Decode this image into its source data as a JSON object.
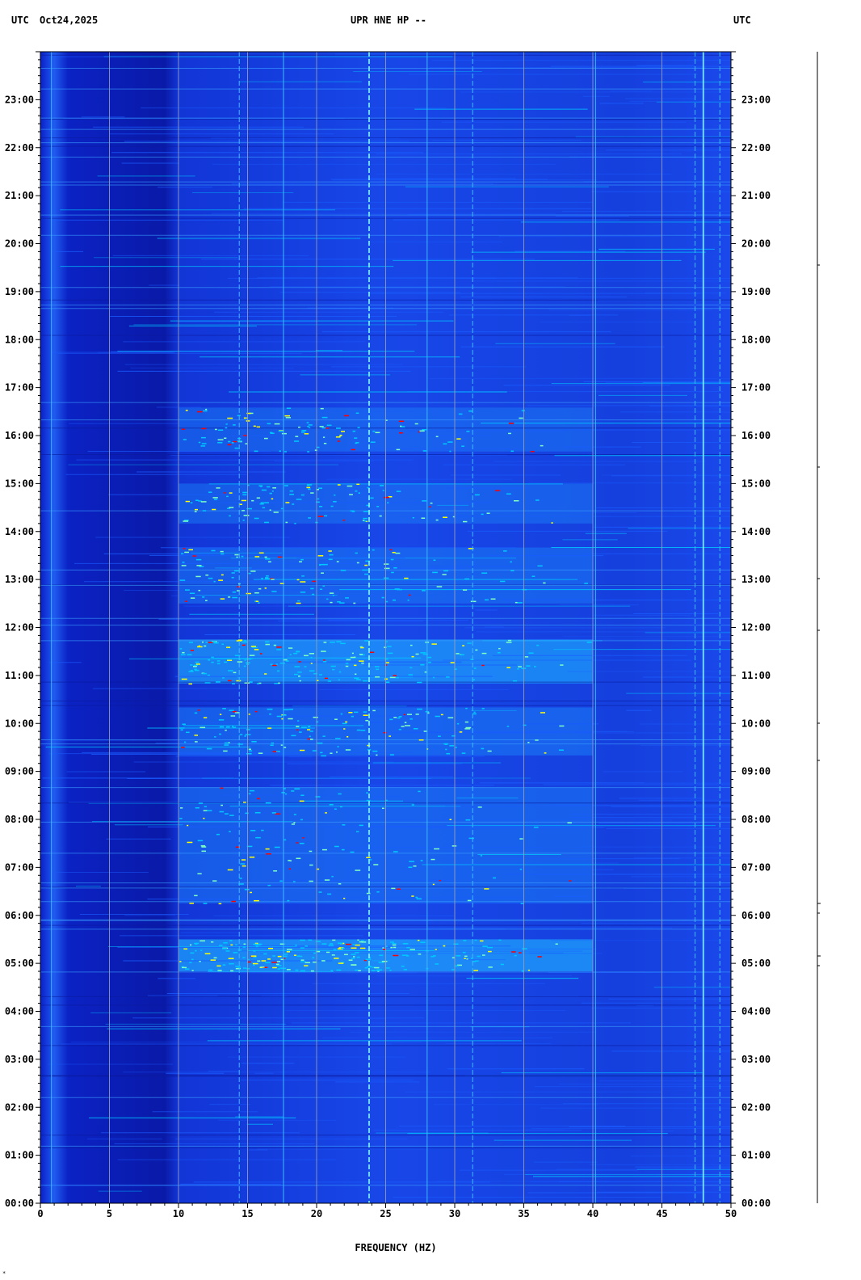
{
  "header": {
    "left_tz": "UTC",
    "date": "Oct24,2025",
    "station": "UPR HNE HP --",
    "right_tz": "UTC"
  },
  "chart_data": {
    "type": "heatmap",
    "title": "UPR HNE HP --",
    "xlabel": "FREQUENCY (HZ)",
    "ylabel": "UTC",
    "xlim": [
      0,
      50
    ],
    "ylim_hours": [
      0,
      24
    ],
    "x_ticks": [
      "0",
      "5",
      "10",
      "15",
      "20",
      "25",
      "30",
      "35",
      "40",
      "45",
      "50"
    ],
    "y_ticks": [
      "00:00",
      "01:00",
      "02:00",
      "03:00",
      "04:00",
      "05:00",
      "06:00",
      "07:00",
      "08:00",
      "09:00",
      "10:00",
      "11:00",
      "12:00",
      "13:00",
      "14:00",
      "15:00",
      "16:00",
      "17:00",
      "18:00",
      "19:00",
      "20:00",
      "21:00",
      "22:00",
      "23:00"
    ],
    "grid_x": true,
    "colormap": [
      "#000080",
      "#0000ff",
      "#1a5cff",
      "#00c8ff",
      "#7fffbf",
      "#ffff00",
      "#ff0000"
    ],
    "persistent_lines_hz": [
      0.8,
      14.4,
      17.6,
      23.8,
      28.0,
      31.3,
      40.2,
      47.4,
      48.0,
      49.2
    ],
    "energetic_bands_utc": [
      {
        "start": "04:50",
        "end": "05:30",
        "level": 0.85
      },
      {
        "start": "06:15",
        "end": "08:40",
        "level": 0.55
      },
      {
        "start": "09:20",
        "end": "10:20",
        "level": 0.6
      },
      {
        "start": "10:50",
        "end": "11:45",
        "level": 0.75
      },
      {
        "start": "12:30",
        "end": "13:40",
        "level": 0.55
      },
      {
        "start": "14:10",
        "end": "15:00",
        "level": 0.45
      },
      {
        "start": "15:40",
        "end": "16:35",
        "level": 0.45
      }
    ]
  },
  "footer": {
    "xlabel": "FREQUENCY (HZ)",
    "mark": "*"
  }
}
